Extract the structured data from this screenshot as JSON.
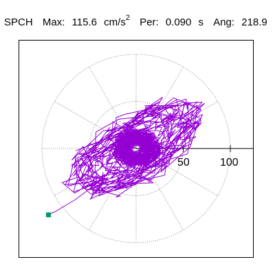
{
  "header": {
    "station": "SPCH",
    "max_label": "Max:",
    "max_value": "115.6",
    "max_unit": "cm/s",
    "max_unit_exp": "2",
    "per_label": "Per:",
    "per_value": "0.090",
    "per_unit": "s",
    "ang_label": "Ang:",
    "ang_value": "218.9"
  },
  "chart_data": {
    "type": "polar-hodogram",
    "radial_ticks": [
      "50",
      "100"
    ],
    "radial_tick_values": [
      50,
      100
    ],
    "rings": [
      50,
      100
    ],
    "grid": "dotted",
    "line_color": "#9400d3",
    "end_marker_color": "#009970"
  }
}
